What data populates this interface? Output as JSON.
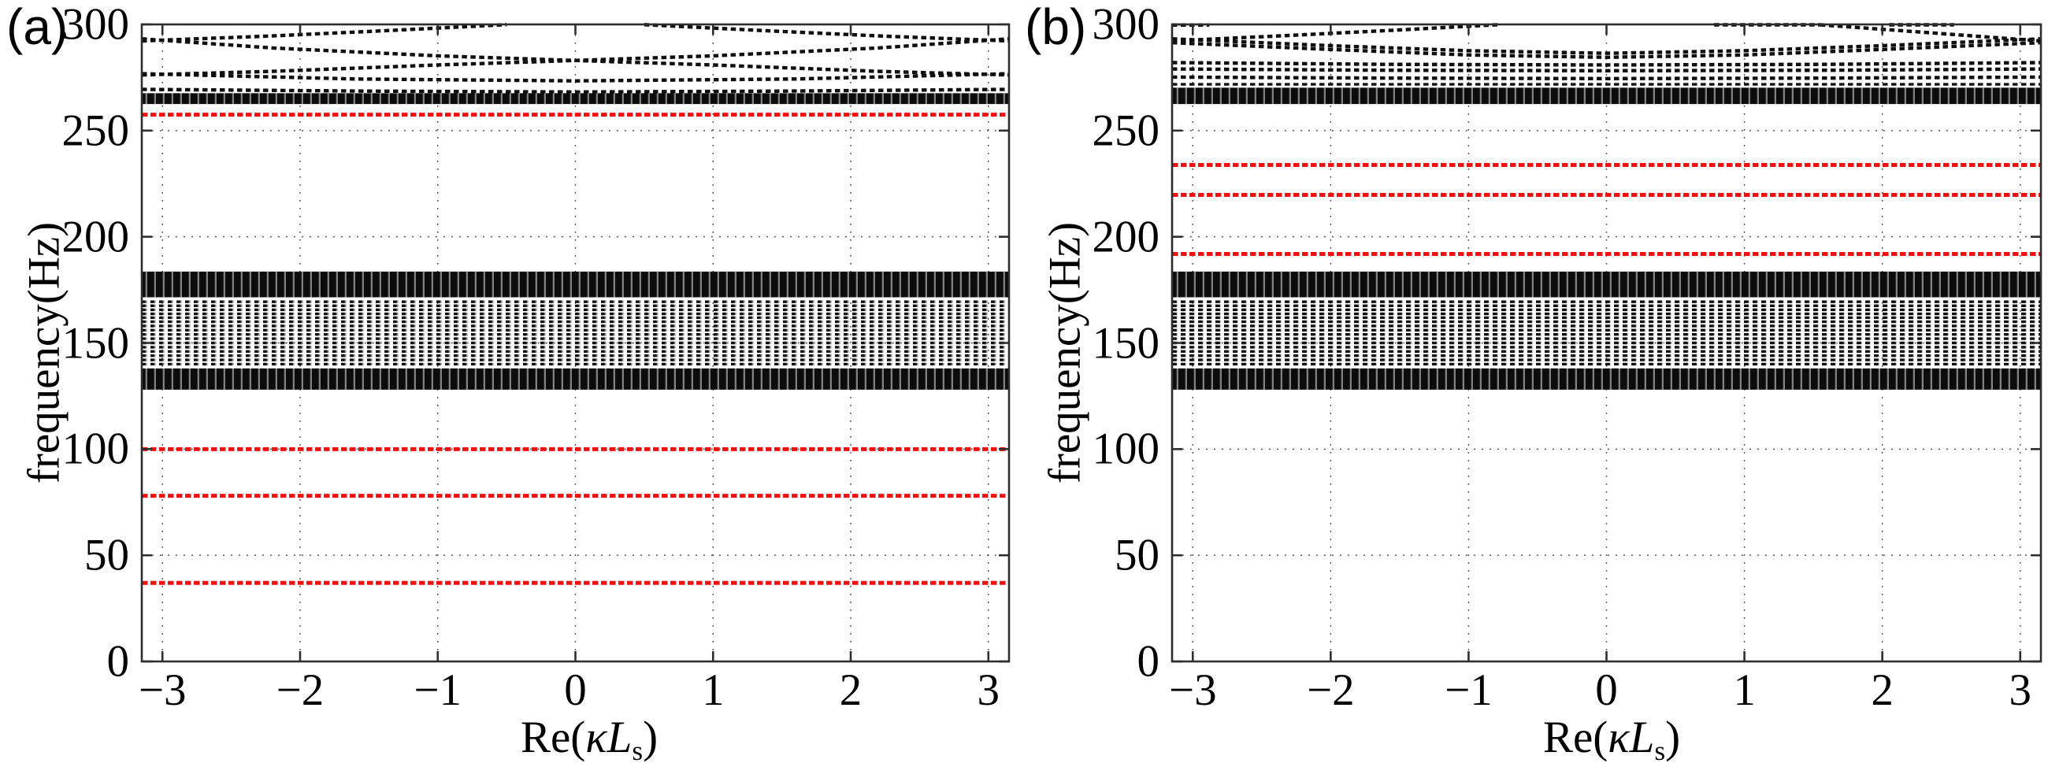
{
  "figure": {
    "background": "#ffffff",
    "accent_red": "#ee1111",
    "panels": [
      {
        "tag": "(a)",
        "ylabel": "frequency(Hz)",
        "xlabel": {
          "prefix": "Re(",
          "kappa": "κ",
          "L": "L",
          "sub": "s",
          "suffix": ")"
        },
        "x_ticks": [
          "−3",
          "−2",
          "−1",
          "0",
          "1",
          "2",
          "3"
        ],
        "y_ticks": [
          "0",
          "50",
          "100",
          "150",
          "200",
          "250",
          "300"
        ]
      },
      {
        "tag": "(b)",
        "ylabel": "frequency(Hz)",
        "xlabel": {
          "prefix": "Re(",
          "kappa": "κ",
          "L": "L",
          "sub": "s",
          "suffix": ")"
        },
        "x_ticks": [
          "−3",
          "−2",
          "−1",
          "0",
          "1",
          "2",
          "3"
        ],
        "y_ticks": [
          "0",
          "50",
          "100",
          "150",
          "200",
          "250",
          "300"
        ]
      }
    ]
  },
  "chart_data": [
    {
      "type": "scatter",
      "panel": "a",
      "title": "",
      "xlabel": "Re(κLs)",
      "ylabel": "frequency(Hz)",
      "x_range": [
        -3.15,
        3.15
      ],
      "y_range": [
        0,
        300
      ],
      "x_tick_values": [
        -3,
        -2,
        -1,
        0,
        1,
        2,
        3
      ],
      "y_tick_values": [
        0,
        50,
        100,
        150,
        200,
        250,
        300
      ],
      "grid": "dotted",
      "description": "Phononic band structure: dense black dotted dispersion bands vs Re(kLs); flat red defect-mode lines",
      "red_flat_modes_hz": [
        257.5,
        100,
        78,
        37
      ],
      "black_solid_bands_hz": [
        [
          128,
          138
        ],
        [
          171.5,
          183.6
        ],
        [
          262.5,
          267.6
        ]
      ],
      "black_flat_lines_hz": [
        140,
        142,
        144,
        146,
        148,
        150,
        152,
        154,
        156,
        158,
        160,
        161.9,
        163.7,
        165.6,
        167.5,
        169.4
      ],
      "black_curves": [
        {
          "name": "tent-left",
          "pts": [
            [
              -3.15,
              292.2
            ],
            [
              -2.2,
              294.6
            ],
            [
              -1.3,
              297.3
            ],
            [
              -0.5,
              299.9
            ]
          ]
        },
        {
          "name": "tent-right",
          "pts": [
            [
              0.5,
              299.9
            ],
            [
              1.3,
              297.3
            ],
            [
              2.2,
              294.6
            ],
            [
              3.15,
              292.2
            ]
          ]
        },
        {
          "name": "cross-descending",
          "pts": [
            [
              -3.15,
              293.2
            ],
            [
              -2.2,
              288.9
            ],
            [
              -1,
              285.2
            ],
            [
              0,
              283
            ],
            [
              1,
              280.9
            ],
            [
              2.2,
              277.9
            ],
            [
              3.15,
              276.2
            ]
          ]
        },
        {
          "name": "cross-ascending",
          "pts": [
            [
              -3.15,
              276.2
            ],
            [
              -2.2,
              277.9
            ],
            [
              -1,
              280.9
            ],
            [
              0,
              283
            ],
            [
              1,
              285.2
            ],
            [
              2.2,
              288.9
            ],
            [
              3.15,
              293.2
            ]
          ]
        },
        {
          "name": "dip-276",
          "pts": [
            [
              -3.15,
              276.8
            ],
            [
              -1.6,
              274.3
            ],
            [
              0,
              273.4
            ],
            [
              1.6,
              274.3
            ],
            [
              3.15,
              276.8
            ]
          ]
        },
        {
          "name": "dip-269",
          "pts": [
            [
              -3.15,
              269.4
            ],
            [
              -1.5,
              268.6
            ],
            [
              0,
              268.2
            ],
            [
              1.5,
              268.6
            ],
            [
              3.15,
              269.4
            ]
          ]
        }
      ],
      "texture_overlays_hz": [
        [
          128,
          183.6
        ],
        [
          262.5,
          267.6
        ]
      ]
    },
    {
      "type": "scatter",
      "panel": "b",
      "title": "",
      "xlabel": "Re(κLs)",
      "ylabel": "frequency(Hz)",
      "x_range": [
        -3.15,
        3.15
      ],
      "y_range": [
        0,
        300
      ],
      "x_tick_values": [
        -3,
        -2,
        -1,
        0,
        1,
        2,
        3
      ],
      "y_tick_values": [
        0,
        50,
        100,
        150,
        200,
        250,
        300
      ],
      "grid": "dotted",
      "description": "Phononic band structure: dense black dotted dispersion bands vs Re(kLs); flat red defect-mode lines",
      "red_flat_modes_hz": [
        233.8,
        219.7,
        191.9
      ],
      "black_solid_bands_hz": [
        [
          128,
          138
        ],
        [
          171.5,
          183.6
        ],
        [
          262.5,
          270.2
        ]
      ],
      "black_flat_lines_hz": [
        140,
        142,
        144,
        146,
        148,
        150,
        152,
        154,
        156,
        158,
        160,
        161.9,
        163.7,
        165.6,
        167.5,
        169.4,
        271.8
      ],
      "black_curves": [
        {
          "name": "tent-left",
          "pts": [
            [
              -3.15,
              292.2
            ],
            [
              -2.3,
              294.8
            ],
            [
              -1.5,
              297.4
            ],
            [
              -0.78,
              299.9
            ]
          ]
        },
        {
          "name": "tent-right-apex",
          "pts": [
            [
              0.78,
              299.8
            ],
            [
              1.55,
              299.8
            ]
          ]
        },
        {
          "name": "tent-right",
          "pts": [
            [
              1.55,
              299.8
            ],
            [
              2.3,
              296.3
            ],
            [
              3.15,
              292.2
            ]
          ]
        },
        {
          "name": "border-left-corner",
          "pts": [
            [
              -3.15,
              299.7
            ],
            [
              -2.88,
              299.7
            ]
          ]
        },
        {
          "name": "border-right-segment",
          "pts": [
            [
              2.05,
              299.8
            ],
            [
              2.52,
              299.8
            ]
          ]
        },
        {
          "name": "arc-upper",
          "pts": [
            [
              -3.15,
              293.2
            ],
            [
              -2,
              290
            ],
            [
              -1,
              287.6
            ],
            [
              0,
              286.4
            ],
            [
              1,
              287.6
            ],
            [
              2,
              290
            ],
            [
              3.15,
              293.2
            ]
          ]
        },
        {
          "name": "arc-lower",
          "pts": [
            [
              -3.15,
              291.4
            ],
            [
              -2,
              288.2
            ],
            [
              -1,
              285.6
            ],
            [
              0,
              284.5
            ],
            [
              1,
              285.6
            ],
            [
              2,
              288.2
            ],
            [
              3.15,
              291.4
            ]
          ]
        },
        {
          "name": "dip-282",
          "pts": [
            [
              -3.15,
              282
            ],
            [
              -1.6,
              281.2
            ],
            [
              0,
              280.9
            ],
            [
              1.6,
              281.2
            ],
            [
              3.15,
              282
            ]
          ]
        },
        {
          "name": "dip-279",
          "pts": [
            [
              -3.15,
              279
            ],
            [
              -1.6,
              278.4
            ],
            [
              0,
              278.2
            ],
            [
              1.6,
              278.4
            ],
            [
              3.15,
              279
            ]
          ]
        },
        {
          "name": "dip-275",
          "pts": [
            [
              -3.15,
              275.2
            ],
            [
              -1.6,
              274.7
            ],
            [
              0,
              274.5
            ],
            [
              1.6,
              274.7
            ],
            [
              3.15,
              275.2
            ]
          ]
        }
      ],
      "texture_overlays_hz": [
        [
          128,
          183.6
        ],
        [
          262.5,
          270.2
        ]
      ]
    }
  ]
}
